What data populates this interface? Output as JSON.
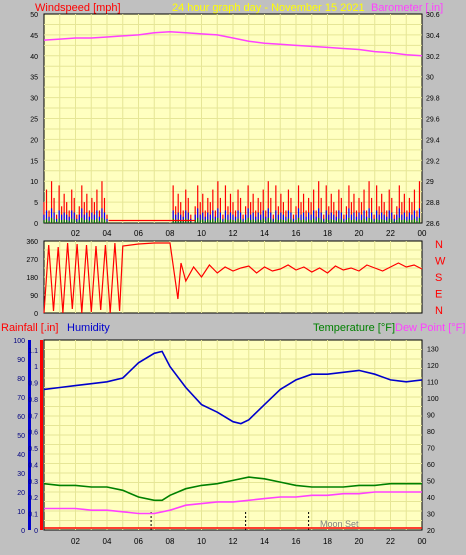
{
  "header": {
    "left_label": "Windspeed [mph]",
    "center_label": "24 hour graph day - November 15 2021",
    "right_label": "Barometer [.in]"
  },
  "colors": {
    "background": "#c0c0c0",
    "plot_bg": "#ffffc0",
    "grid": "#e6e696",
    "wind": "#ff0000",
    "wind_avg": "#0000ff",
    "wind_min": "#008000",
    "barometer": "#ff40ff",
    "direction": "#ff0000",
    "humidity": "#0000cc",
    "temperature": "#008000",
    "dewpoint": "#ff40ff",
    "rainfall": "#ff0000",
    "axis_left_text": "#000080",
    "axis_bar": "#ff0000"
  },
  "chart_data": [
    {
      "name": "wind-barometer",
      "type": "line",
      "x_ticks": [
        "02",
        "04",
        "06",
        "08",
        "10",
        "12",
        "14",
        "16",
        "18",
        "20",
        "22",
        "00"
      ],
      "y_left_ticks": [
        0,
        5,
        10,
        15,
        20,
        25,
        30,
        35,
        40,
        45,
        50
      ],
      "y_left_range": [
        0,
        50
      ],
      "y_right_ticks": [
        "28.6",
        "28.8",
        "29",
        "29.2",
        "29.4",
        "29.6",
        "29.8",
        "30",
        "30.2",
        "30.4",
        "30.6"
      ],
      "y_right_range": [
        28.6,
        30.6
      ],
      "ylabel_left": "Windspeed [mph]",
      "ylabel_right": "Barometer [.in]",
      "grid": true,
      "series": [
        {
          "name": "barometer",
          "x": [
            0,
            1,
            2,
            3,
            4,
            5,
            6,
            7,
            8,
            9,
            10,
            11,
            12,
            13,
            14,
            15,
            16,
            17,
            18,
            19,
            20,
            21,
            22,
            23,
            24
          ],
          "y": [
            30.35,
            30.36,
            30.37,
            30.37,
            30.38,
            30.39,
            30.4,
            30.42,
            30.43,
            30.42,
            30.41,
            30.4,
            30.37,
            30.34,
            30.32,
            30.31,
            30.3,
            30.29,
            30.28,
            30.27,
            30.26,
            30.24,
            30.23,
            30.21,
            30.2
          ]
        }
      ],
      "wind_gust_pattern": [
        5,
        8,
        3,
        10,
        6,
        2,
        9,
        4,
        7,
        5,
        3,
        8,
        6,
        2,
        4,
        9,
        5,
        7,
        3,
        6
      ],
      "wind_avg_pattern": [
        2,
        3,
        1.5,
        3.5,
        2.5,
        1,
        3,
        2,
        2.5,
        2,
        1.5,
        3,
        2.5,
        1,
        2,
        3.5,
        2,
        2.5,
        1.5,
        2.5
      ]
    },
    {
      "name": "wind-direction",
      "type": "line",
      "x_ticks": [
        "02",
        "04",
        "06",
        "08",
        "10",
        "12",
        "14",
        "16",
        "18",
        "20",
        "22",
        "00"
      ],
      "y_left_ticks": [
        0,
        90,
        180,
        270,
        360
      ],
      "y_left_range": [
        0,
        360
      ],
      "y_left_labels_shown": [
        "360",
        "270",
        "180",
        "90",
        "0"
      ],
      "y_right_labels": [
        "N",
        "W",
        "S",
        "E",
        "N"
      ],
      "grid": true,
      "series": [
        {
          "name": "direction",
          "x": [
            0,
            0.3,
            0.6,
            0.9,
            1.2,
            1.5,
            1.8,
            2.1,
            2.4,
            2.7,
            3.0,
            3.3,
            3.6,
            3.9,
            4.2,
            4.5,
            4.8,
            5.0,
            6.0,
            7.0,
            8.0,
            8.5,
            8.7,
            9.0,
            9.5,
            10,
            10.5,
            11,
            11.5,
            12,
            12.5,
            13,
            13.5,
            14,
            14.5,
            15,
            15.5,
            16,
            16.5,
            17,
            17.5,
            18,
            18.5,
            19,
            19.5,
            20,
            20.5,
            21,
            21.5,
            22,
            22.5,
            23,
            23.5,
            24
          ],
          "y": [
            0,
            340,
            10,
            330,
            0,
            350,
            20,
            345,
            0,
            340,
            5,
            335,
            15,
            340,
            0,
            350,
            10,
            335,
            345,
            350,
            350,
            70,
            250,
            160,
            230,
            180,
            240,
            200,
            230,
            210,
            225,
            235,
            200,
            230,
            210,
            220,
            240,
            215,
            230,
            205,
            225,
            200,
            235,
            215,
            225,
            210,
            240,
            225,
            210,
            230,
            250,
            230,
            240,
            220
          ]
        }
      ]
    },
    {
      "name": "temperature-humidity",
      "type": "line",
      "x_ticks": [
        "02",
        "04",
        "06",
        "08",
        "10",
        "12",
        "14",
        "16",
        "18",
        "20",
        "22",
        "00"
      ],
      "y_left_ticks": [
        0,
        10,
        20,
        30,
        40,
        50,
        60,
        70,
        80,
        90,
        100
      ],
      "y_left_range": [
        0,
        100
      ],
      "y_rain_ticks": [
        "0",
        "0.1",
        "0.2",
        "0.3",
        "0.4",
        "0.5",
        "0.6",
        "0.7",
        "0.8",
        "0.9",
        "1",
        "1.1"
      ],
      "y_right_ticks": [
        20,
        30,
        40,
        50,
        60,
        70,
        80,
        90,
        100,
        110,
        120,
        130
      ],
      "y_right_range": [
        20,
        135
      ],
      "ylabel_rain": "Rainfall [.in]",
      "ylabel_humidity": "Humidity",
      "ylabel_temp": "Temperature [°F]",
      "ylabel_dew": "Dew Point [°F]",
      "annotation": "Moon Set",
      "grid": true,
      "series": [
        {
          "name": "humidity",
          "x": [
            0,
            1,
            2,
            3,
            4,
            5,
            6,
            7,
            7.5,
            8,
            9,
            10,
            11,
            12,
            12.5,
            13,
            14,
            15,
            16,
            17,
            18,
            19,
            20,
            21,
            22,
            23,
            24
          ],
          "y": [
            74,
            75,
            76,
            77,
            78,
            80,
            88,
            93,
            94,
            86,
            75,
            66,
            62,
            57,
            56,
            58,
            66,
            74,
            79,
            82,
            82,
            83,
            84,
            82,
            79,
            78,
            79
          ]
        },
        {
          "name": "temperature",
          "x": [
            0,
            1,
            2,
            3,
            4,
            5,
            6,
            7,
            7.5,
            8,
            9,
            10,
            11,
            12,
            13,
            14,
            15,
            16,
            17,
            18,
            19,
            20,
            21,
            22,
            23,
            24
          ],
          "y": [
            48,
            47,
            47,
            46,
            46,
            44,
            40,
            38,
            38,
            41,
            45,
            47,
            48,
            50,
            52,
            51,
            49,
            47,
            46,
            46,
            46,
            47,
            47,
            48,
            48,
            48
          ]
        },
        {
          "name": "dewpoint",
          "x": [
            0,
            1,
            2,
            3,
            4,
            5,
            6,
            7,
            8,
            9,
            10,
            11,
            12,
            13,
            14,
            15,
            16,
            17,
            18,
            19,
            20,
            21,
            22,
            23,
            24
          ],
          "y": [
            33,
            33,
            33,
            32,
            32,
            31,
            30,
            30,
            32,
            35,
            36,
            37,
            37,
            38,
            39,
            40,
            40,
            41,
            41,
            42,
            42,
            43,
            43,
            43,
            43
          ]
        }
      ],
      "markers_x": [
        6.8,
        12.8,
        16.8
      ]
    }
  ]
}
